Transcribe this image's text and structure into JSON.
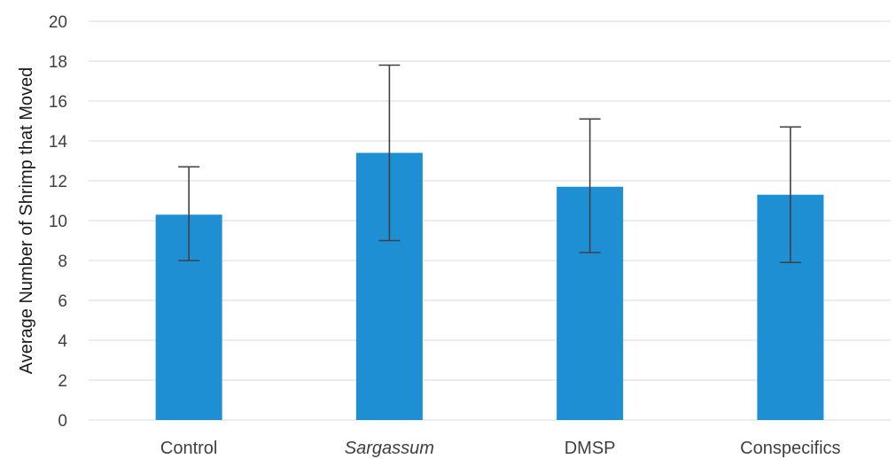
{
  "chart_data": {
    "type": "bar",
    "categories": [
      "Control",
      "Sargassum",
      "DMSP",
      "Conspecifics"
    ],
    "italic_categories": [
      "Sargassum"
    ],
    "values": [
      10.3,
      13.4,
      11.7,
      11.3
    ],
    "error_low": [
      8.0,
      9.0,
      8.4,
      7.9
    ],
    "error_high": [
      12.7,
      17.8,
      15.1,
      14.7
    ],
    "title": "",
    "xlabel": "",
    "ylabel": "Average Number of Shrimp that Moved",
    "ylim": [
      0,
      20
    ],
    "yticks": [
      0,
      2,
      4,
      6,
      8,
      10,
      12,
      14,
      16,
      18,
      20
    ],
    "grid": true,
    "bar_color": "#1f8fd4",
    "error_color": "#404040",
    "grid_color": "#d9d9d9"
  }
}
